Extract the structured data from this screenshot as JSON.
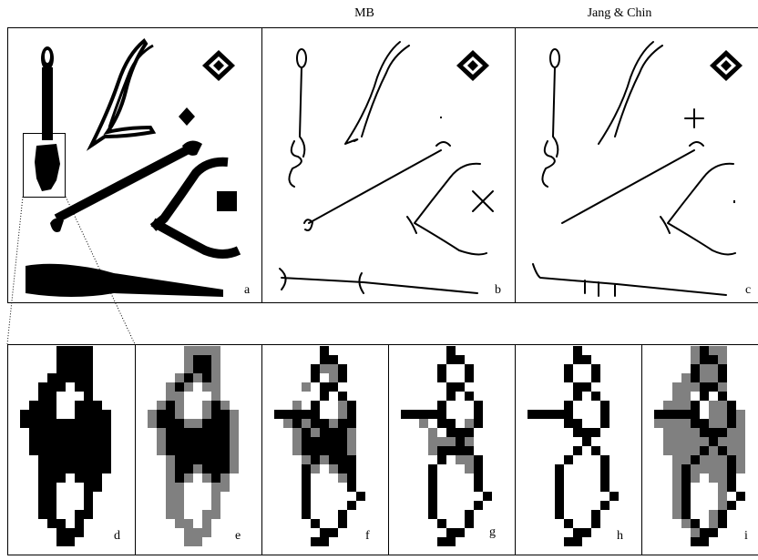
{
  "header": {
    "left": "MB",
    "right": "Jang & Chin"
  },
  "panels": {
    "labels": [
      "a",
      "b",
      "c",
      "d",
      "e",
      "f",
      "g",
      "h",
      "i"
    ]
  }
}
